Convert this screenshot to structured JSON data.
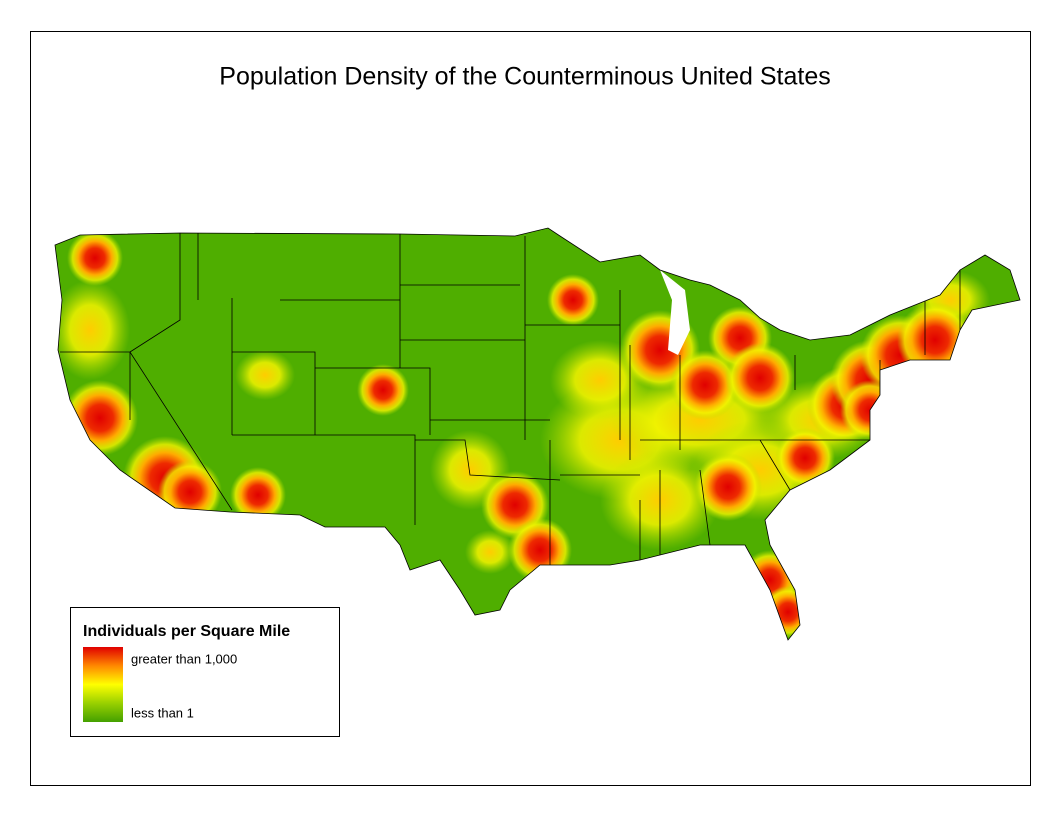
{
  "title": "Population Density of the Counterminous United States",
  "legend": {
    "title": "Individuals per Square Mile",
    "items": [
      "greater than 1,000",
      "less than 1"
    ]
  }
}
